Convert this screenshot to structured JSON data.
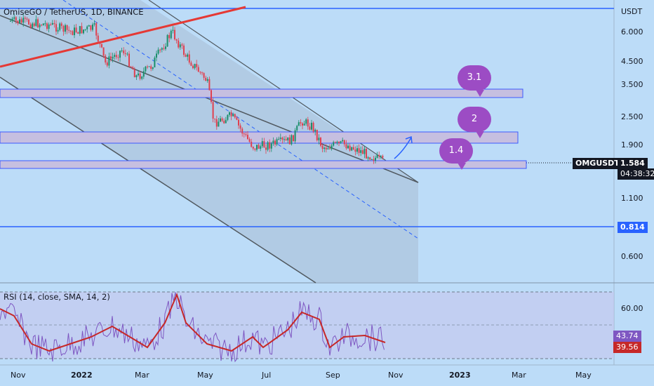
{
  "header": {
    "title": "OmiseGO / TetherUS, 1D, BINANCE"
  },
  "rsi": {
    "title": "RSI (14, close, SMA, 14, 2)",
    "value_rsi": "43.74",
    "value_sma": "39.56",
    "levels": [
      "60.00"
    ]
  },
  "price_axis": {
    "currency": "USDT",
    "ticks": [
      "6.000",
      "4.500",
      "3.500",
      "2.500",
      "1.900",
      "1.100",
      "0.600"
    ],
    "marked_level": "0.814",
    "last_price": "1.584",
    "countdown": "04:38:32",
    "symbol_label": "OMGUSDT"
  },
  "time_axis": [
    "Nov",
    "2022",
    "Mar",
    "May",
    "Jul",
    "Sep",
    "Nov",
    "2023",
    "Mar",
    "May"
  ],
  "targets": [
    {
      "label": "3.1"
    },
    {
      "label": "2"
    },
    {
      "label": "1.4"
    }
  ],
  "colors": {
    "background": "#bcdcf8",
    "up_candle": "#1b8f6b",
    "down_candle": "#e0404f",
    "resistance_line": "#e53935",
    "horizontal_line": "#2962ff",
    "channel": "#9aa7b8",
    "rsi_line": "#7e57c2",
    "rsi_sma": "#c62828",
    "bubble": "#9c4cc4"
  }
}
